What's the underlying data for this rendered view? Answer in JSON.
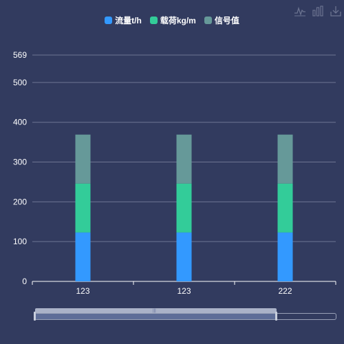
{
  "toolbox": {
    "icons": [
      "line-chart-icon",
      "bar-chart-icon",
      "download-icon"
    ]
  },
  "legend": [
    {
      "name": "流量t/h",
      "color": "#3399ff"
    },
    {
      "name": "载荷kg/m",
      "color": "#33cc99"
    },
    {
      "name": "信号值",
      "color": "#669999"
    }
  ],
  "chart_data": {
    "type": "bar",
    "stacked": true,
    "categories": [
      "123",
      "123",
      "222"
    ],
    "series": [
      {
        "name": "流量t/h",
        "color": "#3399ff",
        "values": [
          123,
          123,
          123
        ]
      },
      {
        "name": "载荷kg/m",
        "color": "#33cc99",
        "values": [
          123,
          123,
          123
        ]
      },
      {
        "name": "信号值",
        "color": "#669999",
        "values": [
          123,
          123,
          123
        ]
      }
    ],
    "ylim": [
      0,
      569
    ],
    "yticks": [
      0,
      100,
      200,
      300,
      400,
      500,
      569
    ],
    "grid": true,
    "legend_position": "top-center"
  }
}
